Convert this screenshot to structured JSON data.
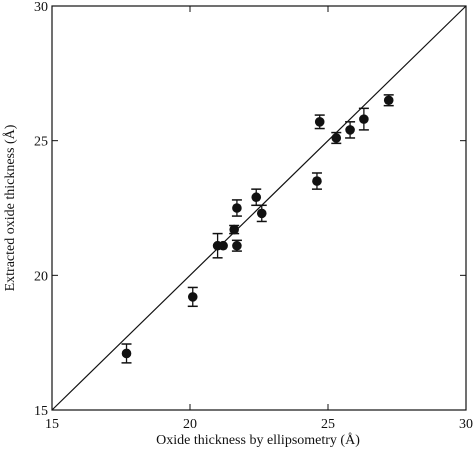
{
  "chart_data": {
    "type": "scatter",
    "title": "",
    "xlabel": "Oxide thickness by ellipsometry  (Å)",
    "ylabel": "Extracted oxide thickness  (Å)",
    "xlim": [
      15,
      30
    ],
    "ylim": [
      15,
      30
    ],
    "xticks": [
      "15",
      "20",
      "25",
      "30"
    ],
    "yticks": [
      "15",
      "20",
      "25",
      "30"
    ],
    "grid": false,
    "reference_line": {
      "x": [
        15,
        30
      ],
      "y": [
        15,
        30
      ]
    },
    "points": [
      {
        "x": 17.7,
        "y": 17.1,
        "err": 0.35
      },
      {
        "x": 20.1,
        "y": 19.2,
        "err": 0.35
      },
      {
        "x": 21.0,
        "y": 21.1,
        "err": 0.45
      },
      {
        "x": 21.2,
        "y": 21.1,
        "err": 0.0
      },
      {
        "x": 21.6,
        "y": 21.7,
        "err": 0.15
      },
      {
        "x": 21.7,
        "y": 21.1,
        "err": 0.2
      },
      {
        "x": 21.7,
        "y": 22.5,
        "err": 0.3
      },
      {
        "x": 22.4,
        "y": 22.9,
        "err": 0.3
      },
      {
        "x": 22.6,
        "y": 22.3,
        "err": 0.3
      },
      {
        "x": 24.6,
        "y": 23.5,
        "err": 0.3
      },
      {
        "x": 24.7,
        "y": 25.7,
        "err": 0.25
      },
      {
        "x": 25.3,
        "y": 25.1,
        "err": 0.2
      },
      {
        "x": 25.8,
        "y": 25.4,
        "err": 0.3
      },
      {
        "x": 26.3,
        "y": 25.8,
        "err": 0.4
      },
      {
        "x": 27.2,
        "y": 26.5,
        "err": 0.2
      }
    ],
    "colors": {
      "marker": "#111111",
      "axis": "#111111"
    }
  }
}
